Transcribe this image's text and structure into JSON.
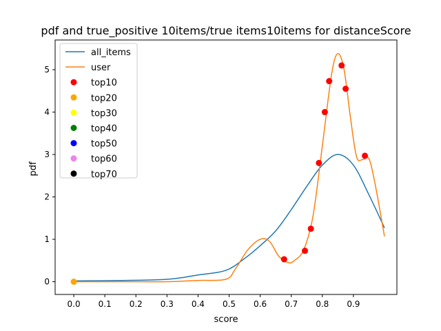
{
  "chart_data": {
    "type": "line",
    "title": "pdf and true_positive 10items/true items10items for distanceScore",
    "xlabel": "score",
    "ylabel": "pdf",
    "xlim": [
      -0.06,
      1.04
    ],
    "ylim": [
      -0.3,
      5.7
    ],
    "xticks": [
      0.0,
      0.1,
      0.2,
      0.3,
      0.4,
      0.5,
      0.6,
      0.7,
      0.8,
      0.9
    ],
    "xtick_labels": [
      "0.0",
      "0.1",
      "0.2",
      "0.3",
      "0.4",
      "0.5",
      "0.6",
      "0.7",
      "0.8",
      "0.9"
    ],
    "yticks": [
      0,
      1,
      2,
      3,
      4,
      5
    ],
    "ytick_labels": [
      "0",
      "1",
      "2",
      "3",
      "4",
      "5"
    ],
    "grid": false,
    "legend_position": "upper-left",
    "series": [
      {
        "name": "all_items",
        "kind": "line",
        "color": "#1f77b4",
        "x": [
          0.0,
          0.28,
          0.4,
          0.49,
          0.55,
          0.6,
          0.65,
          0.7,
          0.75,
          0.8,
          0.85,
          0.9,
          0.95,
          1.0
        ],
        "y": [
          0.02,
          0.05,
          0.16,
          0.27,
          0.55,
          0.85,
          1.2,
          1.7,
          2.25,
          2.75,
          3.0,
          2.75,
          2.05,
          1.27
        ]
      },
      {
        "name": "user",
        "kind": "line",
        "color": "#ff7f0e",
        "x": [
          0.0,
          0.1,
          0.2,
          0.3,
          0.4,
          0.49,
          0.52,
          0.56,
          0.6,
          0.63,
          0.66,
          0.69,
          0.71,
          0.74,
          0.77,
          0.8,
          0.83,
          0.85,
          0.87,
          0.89,
          0.91,
          0.93,
          0.95,
          0.97,
          1.0
        ],
        "y": [
          0.0,
          0.0,
          0.0,
          0.0,
          0.03,
          0.06,
          0.3,
          0.75,
          1.0,
          0.95,
          0.6,
          0.45,
          0.5,
          0.75,
          1.55,
          3.2,
          4.9,
          5.38,
          5.0,
          3.9,
          2.95,
          2.88,
          2.9,
          2.3,
          1.07
        ]
      },
      {
        "name": "top10",
        "kind": "scatter",
        "color": "#ff0000",
        "x": [
          0.677,
          0.744,
          0.763,
          0.789,
          0.808,
          0.822,
          0.862,
          0.875,
          0.937
        ],
        "y": [
          0.53,
          0.73,
          1.25,
          2.8,
          4.0,
          4.73,
          5.1,
          4.55,
          2.97
        ]
      },
      {
        "name": "top20",
        "kind": "scatter",
        "color": "#ffa500",
        "x": [
          0.0
        ],
        "y": [
          0.0
        ]
      },
      {
        "name": "top30",
        "kind": "scatter",
        "color": "#ffff00",
        "x": [],
        "y": []
      },
      {
        "name": "top40",
        "kind": "scatter",
        "color": "#008000",
        "x": [],
        "y": []
      },
      {
        "name": "top50",
        "kind": "scatter",
        "color": "#0000ff",
        "x": [],
        "y": []
      },
      {
        "name": "top60",
        "kind": "scatter",
        "color": "#ee82ee",
        "x": [],
        "y": []
      },
      {
        "name": "top70",
        "kind": "scatter",
        "color": "#000000",
        "x": [],
        "y": []
      }
    ]
  }
}
